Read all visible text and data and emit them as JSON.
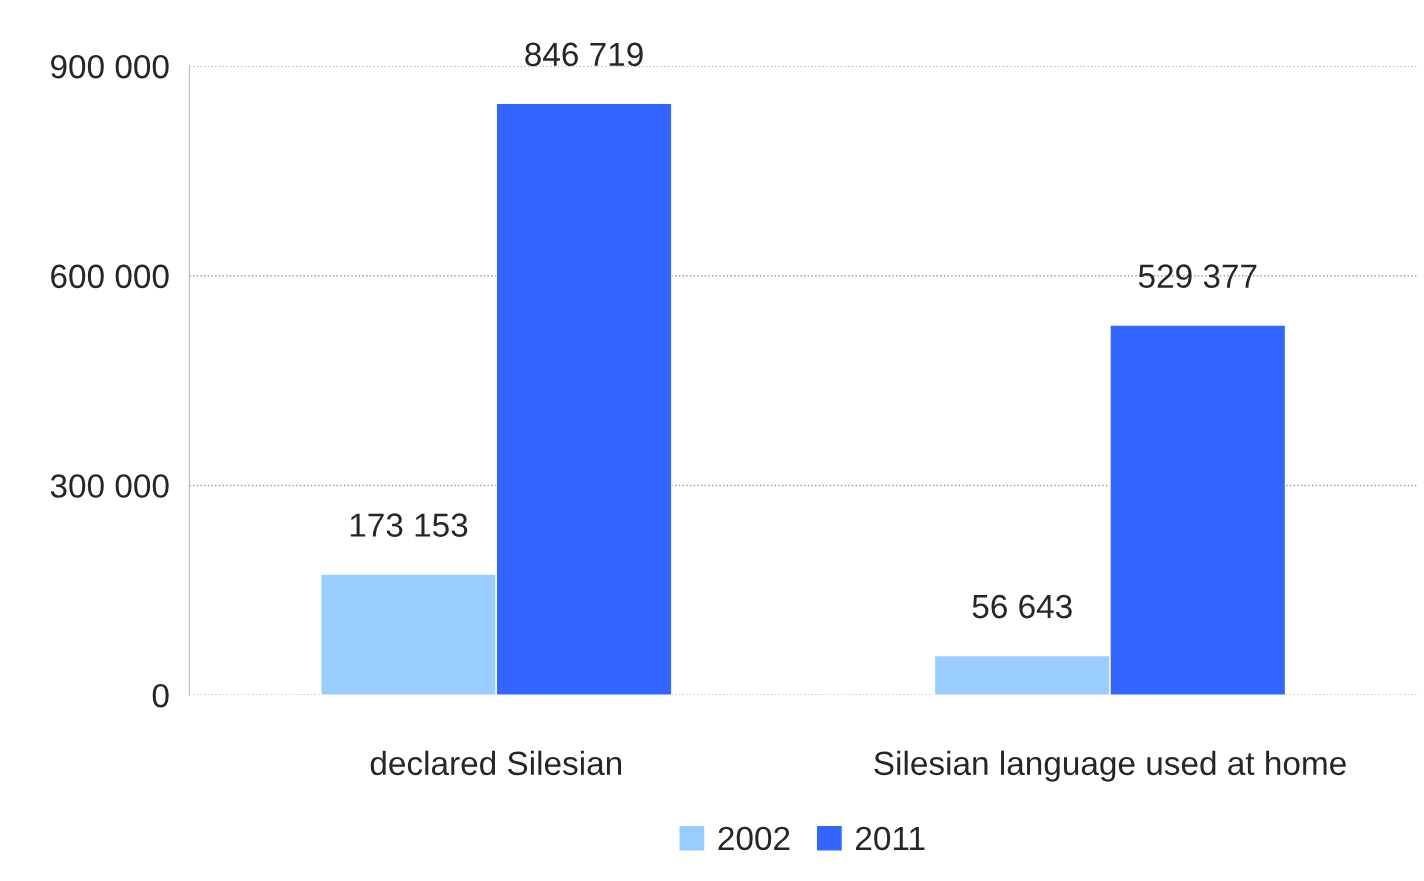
{
  "chart_data": {
    "type": "bar",
    "categories": [
      "declared Silesian",
      "Silesian language used at home"
    ],
    "series": [
      {
        "name": "2002",
        "color": "#99ccff",
        "values": [
          173153,
          56643
        ],
        "value_labels": [
          "173 153",
          "56 643"
        ]
      },
      {
        "name": "2011",
        "color": "#3366ff",
        "values": [
          846719,
          529377
        ],
        "value_labels": [
          "846 719",
          "529 377"
        ]
      }
    ],
    "ylim": [
      0,
      900000
    ],
    "yticks": [
      {
        "value": 0,
        "label": "0"
      },
      {
        "value": 300000,
        "label": "300 000"
      },
      {
        "value": 600000,
        "label": "600 000"
      },
      {
        "value": 900000,
        "label": "900 000"
      }
    ],
    "grid": "y",
    "legend": "bottom"
  }
}
